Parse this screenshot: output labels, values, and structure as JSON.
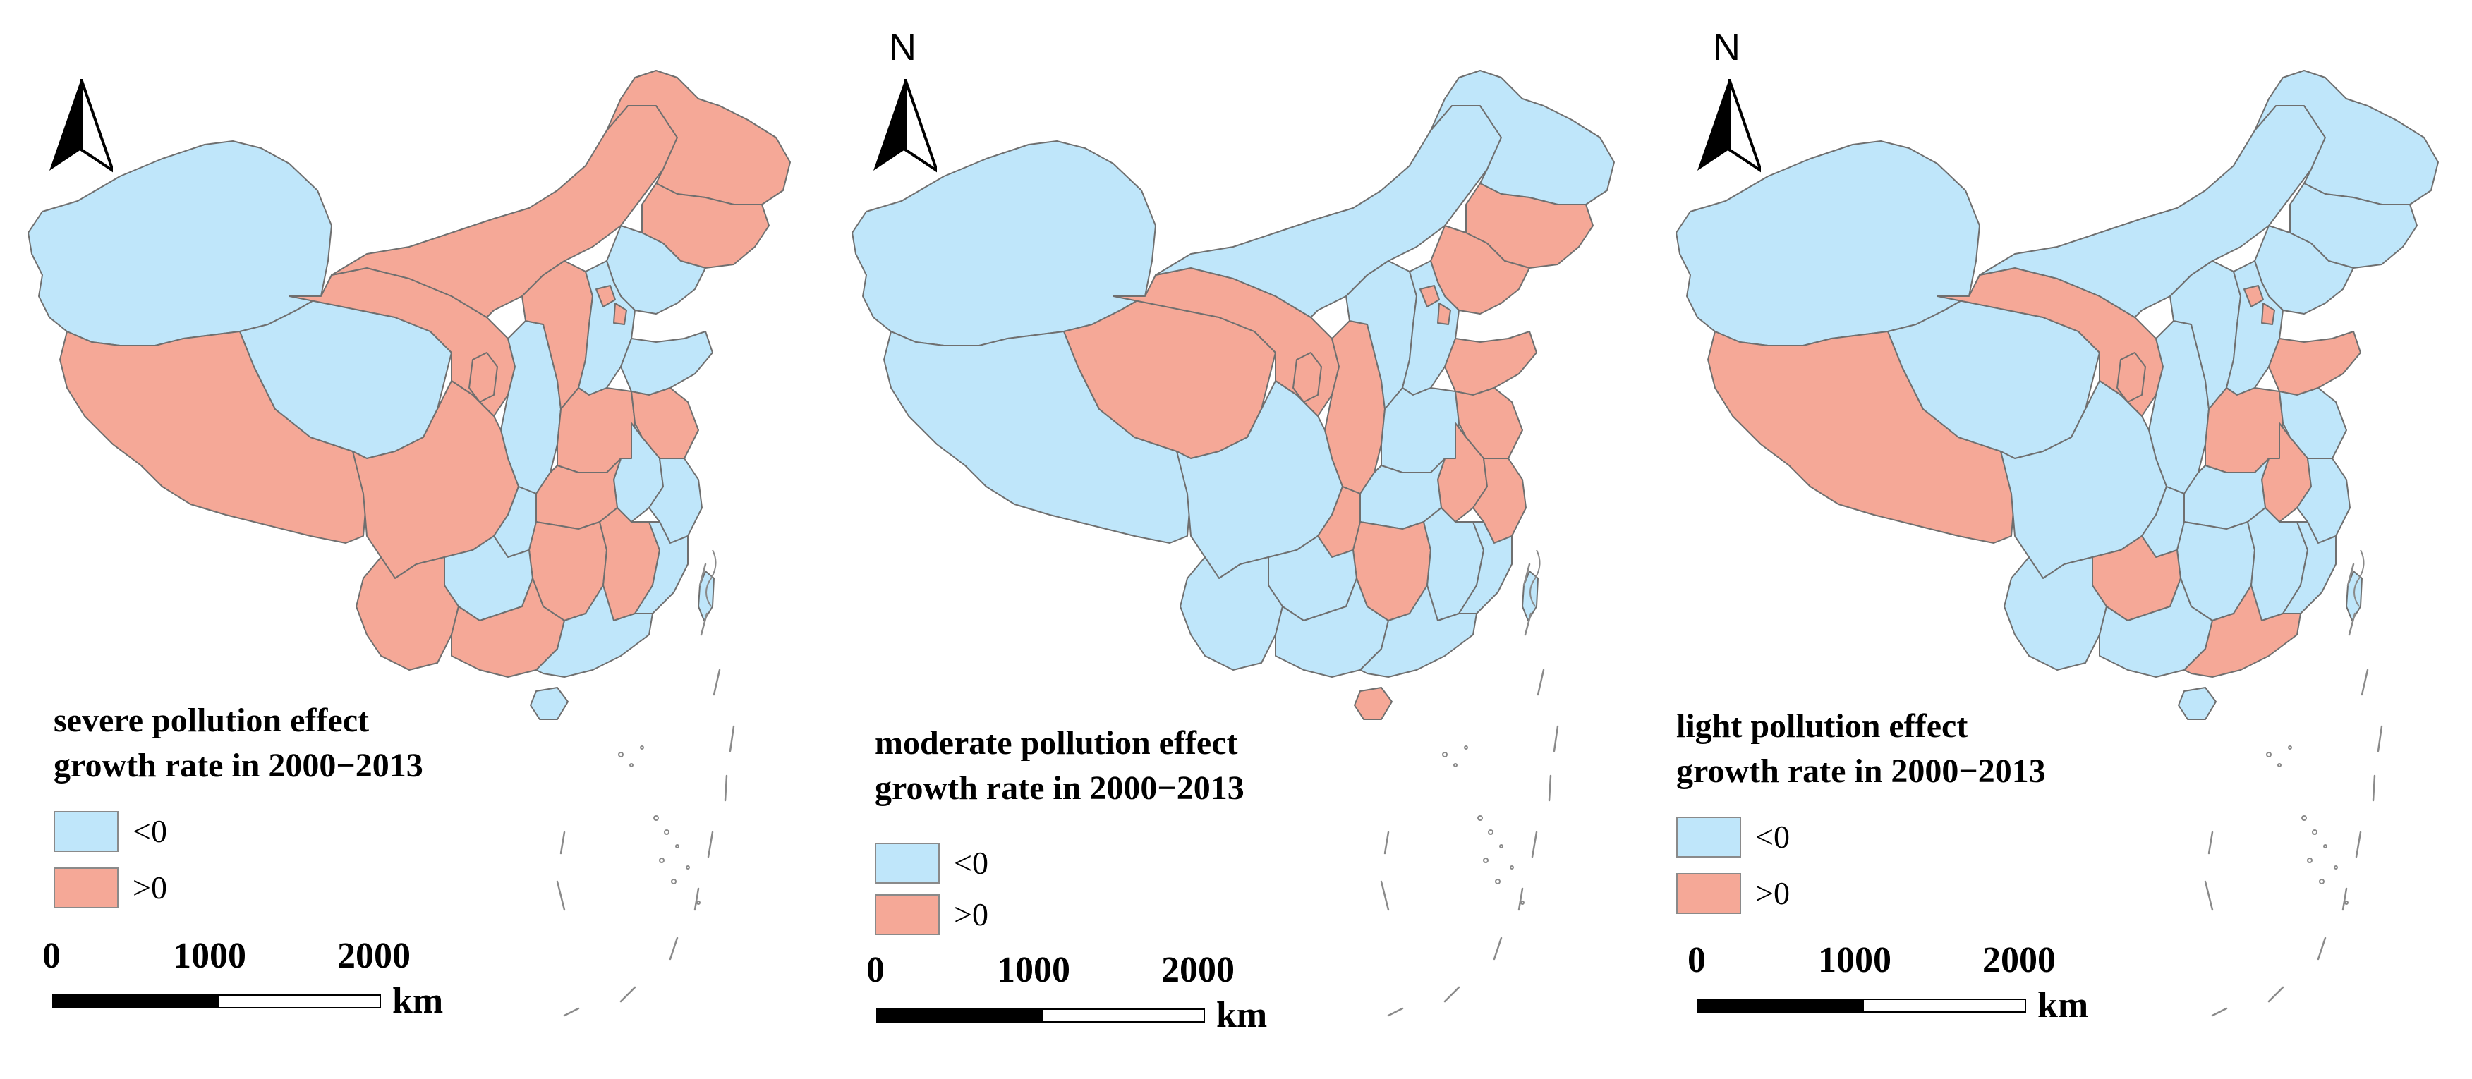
{
  "north_label": "N",
  "colors": {
    "negative": "#bfe6fa",
    "positive": "#f5a897",
    "boundary": "#6f6f6f"
  },
  "legend_labels": {
    "negative": "<0",
    "positive": ">0"
  },
  "scale": {
    "ticks": [
      "0",
      "1000",
      "2000"
    ],
    "unit": "km"
  },
  "panels": [
    {
      "title_line1": "severe pollution effect",
      "title_line2": "growth rate in 2000−2013",
      "show_north_label": false,
      "regions": {
        "Xinjiang": "negative",
        "Tibet": "positive",
        "Qinghai": "negative",
        "Gansu": "positive",
        "InnerMongolia": "positive",
        "Heilongjiang": "positive",
        "Jilin": "positive",
        "Liaoning": "negative",
        "Ningxia": "positive",
        "Shaanxi": "negative",
        "Shanxi": "positive",
        "Hebei": "negative",
        "Beijing": "positive",
        "Tianjin": "positive",
        "Shandong": "negative",
        "Henan": "positive",
        "Jiangsu": "positive",
        "Anhui": "negative",
        "Hubei": "positive",
        "Sichuan": "positive",
        "Chongqing": "negative",
        "Hunan": "positive",
        "Jiangxi": "positive",
        "Zhejiang": "negative",
        "Fujian": "negative",
        "Guizhou": "negative",
        "Yunnan": "positive",
        "Guangxi": "positive",
        "Guangdong": "negative",
        "Hainan": "negative",
        "Taiwan": "negative"
      }
    },
    {
      "title_line1": "moderate pollution effect",
      "title_line2": "growth rate in 2000−2013",
      "show_north_label": true,
      "regions": {
        "Xinjiang": "negative",
        "Tibet": "negative",
        "Qinghai": "positive",
        "Gansu": "positive",
        "InnerMongolia": "negative",
        "Heilongjiang": "negative",
        "Jilin": "positive",
        "Liaoning": "positive",
        "Ningxia": "positive",
        "Shaanxi": "positive",
        "Shanxi": "negative",
        "Hebei": "negative",
        "Beijing": "positive",
        "Tianjin": "positive",
        "Shandong": "positive",
        "Henan": "negative",
        "Jiangsu": "positive",
        "Anhui": "positive",
        "Hubei": "negative",
        "Sichuan": "negative",
        "Chongqing": "positive",
        "Hunan": "positive",
        "Jiangxi": "negative",
        "Zhejiang": "positive",
        "Fujian": "negative",
        "Guizhou": "negative",
        "Yunnan": "negative",
        "Guangxi": "negative",
        "Guangdong": "negative",
        "Hainan": "positive",
        "Taiwan": "negative"
      }
    },
    {
      "title_line1": "light pollution effect",
      "title_line2": "growth rate in 2000−2013",
      "show_north_label": true,
      "regions": {
        "Xinjiang": "negative",
        "Tibet": "positive",
        "Qinghai": "negative",
        "Gansu": "positive",
        "InnerMongolia": "negative",
        "Heilongjiang": "negative",
        "Jilin": "negative",
        "Liaoning": "negative",
        "Ningxia": "positive",
        "Shaanxi": "negative",
        "Shanxi": "negative",
        "Hebei": "negative",
        "Beijing": "positive",
        "Tianjin": "positive",
        "Shandong": "positive",
        "Henan": "positive",
        "Jiangsu": "negative",
        "Anhui": "positive",
        "Hubei": "negative",
        "Sichuan": "negative",
        "Chongqing": "negative",
        "Hunan": "negative",
        "Jiangxi": "negative",
        "Zhejiang": "negative",
        "Fujian": "negative",
        "Guizhou": "positive",
        "Yunnan": "negative",
        "Guangxi": "negative",
        "Guangdong": "positive",
        "Hainan": "negative",
        "Taiwan": "negative"
      }
    }
  ]
}
